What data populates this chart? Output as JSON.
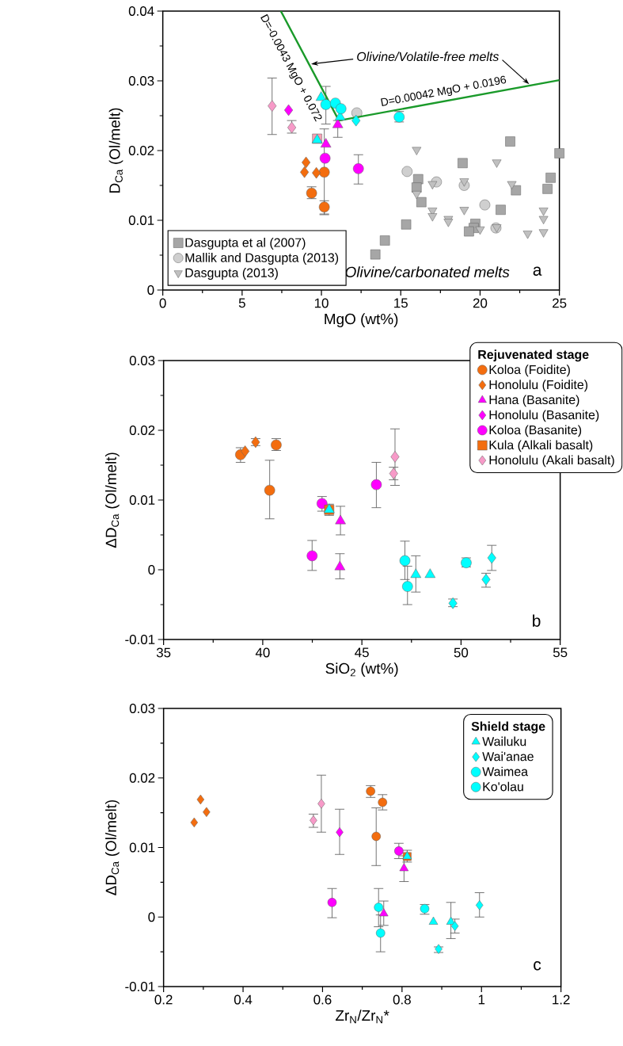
{
  "chart_data": [
    {
      "type": "scatter",
      "xlabel": "MgO (wt%)",
      "ylabel": "D$_{Ca}$ (Ol/melt)",
      "xlim": [
        0,
        25
      ],
      "ylim": [
        0,
        0.04
      ],
      "xticks": [
        0,
        5,
        10,
        15,
        20,
        25
      ],
      "yticks": [
        0,
        0.01,
        0.02,
        0.03,
        0.04
      ],
      "legend": "bottom left",
      "annotations": [
        "D=-0.0043 MgO + 0.072",
        {
          "text": "Olivine/Volatile-free melts",
          "x": 9.35,
          "y": 0.0324
        },
        "D=0.00042 MgO + 0.0196",
        "Olivine/carbonated melts",
        "a"
      ],
      "series": [
        {
          "name": "Dasgupta et al (2007)",
          "marker": "square",
          "color": "#a6a6a6",
          "x": [
            21.9,
            25.0,
            18.9,
            16.1,
            16.0,
            16.3,
            24.45,
            24.25,
            22.26,
            15.34,
            21.3,
            19.7,
            19.6,
            19.3,
            14.0,
            13.4
          ],
          "values": [
            0.0213,
            0.0196,
            0.0182,
            0.0159,
            0.0147,
            0.0126,
            0.0161,
            0.0145,
            0.0143,
            0.0094,
            0.0115,
            0.0095,
            0.0089,
            0.0084,
            0.0071,
            0.0051
          ]
        },
        {
          "name": "Mallik and Dasgupta (2013)",
          "marker": "circle",
          "color": "#cfcfcf",
          "x": [
            12.23,
            15.4,
            17.25,
            19.0,
            20.3,
            21.0
          ],
          "values": [
            0.0254,
            0.017,
            0.0155,
            0.015,
            0.0122,
            0.0089
          ]
        },
        {
          "name": "Dasgupta (2013)",
          "marker": "triangle-down",
          "color": "#c0c0c0",
          "x": [
            16.0,
            21.05,
            17.0,
            19.0,
            22.0,
            16.0,
            17.0,
            17.0,
            18.0,
            18.0,
            19.0,
            20.0,
            21.05,
            23.0,
            24.0,
            24.0,
            24.0
          ],
          "values": [
            0.0201,
            0.0183,
            0.0152,
            0.0156,
            0.0152,
            0.0138,
            0.0114,
            0.0106,
            0.0102,
            0.0098,
            0.0115,
            0.0087,
            0.009,
            0.0081,
            0.0114,
            0.0102,
            0.0083
          ]
        },
        {
          "type": "line",
          "color": "#1a9a2a",
          "x": [
            7.44,
            11.1,
            25
          ],
          "values": [
            0.04,
            0.0243,
            0.0301
          ]
        },
        {
          "marker": "circle",
          "color": "#f36d0f",
          "x": [
            9.38,
            10.18,
            10.18
          ],
          "values": [
            0.0139,
            0.0169,
            0.0119
          ],
          "errors": [
            [
              0.0131,
              0.0148
            ],
            [
              0.0108,
              0.0231
            ],
            [
              0.0109,
              0.0128
            ]
          ]
        },
        {
          "marker": "diamond",
          "color": "#f36d0f",
          "x": [
            9.03,
            8.93,
            9.68
          ],
          "values": [
            0.0183,
            0.0169,
            0.0168
          ]
        },
        {
          "marker": "triangle",
          "color": "#ff00ff",
          "x": [
            10.28,
            11.03
          ],
          "values": [
            0.0209,
            0.0237
          ],
          "errors": [
            null,
            [
              0.0219,
              0.0243
            ]
          ]
        },
        {
          "marker": "diamond",
          "color": "#ff00ff",
          "x": [
            7.93
          ],
          "values": [
            0.0258
          ]
        },
        {
          "marker": "circle",
          "color": "#ff00ff",
          "x": [
            10.23,
            12.33
          ],
          "values": [
            0.0189,
            0.0174
          ],
          "errors": [
            null,
            [
              0.0152,
              0.0194
            ]
          ]
        },
        {
          "marker": "square",
          "color": "#f7a0b4",
          "x": [
            9.73
          ],
          "values": [
            0.0217
          ]
        },
        {
          "marker": "diamond",
          "color": "#f79ac8",
          "x": [
            6.89,
            8.13
          ],
          "values": [
            0.0264,
            0.0233
          ],
          "errors": [
            [
              0.0223,
              0.0304
            ],
            [
              0.0225,
              0.0243
            ]
          ]
        },
        {
          "marker": "triangle",
          "color": "#00ffff",
          "x": [
            9.73,
            9.98,
            11.18
          ],
          "values": [
            0.0215,
            0.0276,
            0.0248
          ]
        },
        {
          "marker": "diamond",
          "color": "#00ffff",
          "x": [
            12.18
          ],
          "values": [
            0.0243
          ]
        },
        {
          "marker": "circle",
          "color": "#00ffff",
          "x": [
            10.28,
            10.88,
            11.23,
            14.9
          ],
          "values": [
            0.0266,
            0.0268,
            0.026,
            0.0248
          ],
          "errors": [
            [
              0.0238,
              0.0292
            ],
            null,
            null,
            [
              0.0241,
              0.0256
            ]
          ]
        }
      ]
    },
    {
      "type": "scatter",
      "xlabel": "SiO$_{2}$ (wt%)",
      "ylabel": "ΔD$_{Ca}$ (Ol/melt)",
      "xlim": [
        35,
        55
      ],
      "ylim": [
        -0.01,
        0.03
      ],
      "xticks": [
        35,
        40,
        45,
        50,
        55
      ],
      "yticks": [
        -0.01,
        0,
        0.01,
        0.02,
        0.03
      ],
      "legend": "top right",
      "legend_title": "Rejuvenated stage",
      "annotations": [
        "b"
      ],
      "series": [
        {
          "name": "Koloa (Foidite)",
          "marker": "circle",
          "color": "#f36d0f",
          "x": [
            38.88,
            40.68,
            40.35
          ],
          "values": [
            0.0165,
            0.0179,
            0.0114
          ],
          "errors": [
            [
              0.0154,
              0.0175
            ],
            [
              0.0171,
              0.0188
            ],
            [
              0.0073,
              0.0157
            ]
          ]
        },
        {
          "name": "Honolulu (Foidite)",
          "marker": "diamond",
          "color": "#f36d0f",
          "x": [
            39.11,
            39.64
          ],
          "values": [
            0.017,
            0.0183
          ],
          "errors": [
            null,
            [
              0.0178,
              0.0188
            ]
          ]
        },
        {
          "name": "Hana (Basanite)",
          "marker": "triangle",
          "color": "#ff00ff",
          "x": [
            43.92,
            43.89
          ],
          "values": [
            0.007,
            0.0004
          ],
          "errors": [
            [
              0.005,
              0.0091
            ],
            [
              -0.0013,
              0.0023
            ]
          ]
        },
        {
          "name": "Honolulu (Basanite)",
          "marker": "diamond",
          "color": "#ff00ff"
        },
        {
          "name": "Koloa (Basanite)",
          "marker": "circle",
          "color": "#ff00ff",
          "x": [
            42.99,
            42.49,
            45.73
          ],
          "values": [
            0.0095,
            0.002,
            0.0122
          ],
          "errors": [
            [
              0.0084,
              0.0105
            ],
            [
              -0.0001,
              0.0042
            ],
            [
              0.0089,
              0.0154
            ]
          ]
        },
        {
          "name": "Kula (Alkali basalt)",
          "marker": "square",
          "color": "#f36d0f",
          "x": [
            43.35
          ],
          "values": [
            0.0086
          ],
          "errors": [
            [
              0.0078,
              0.0094
            ]
          ]
        },
        {
          "name": "Honolulu (Akali basalt)",
          "marker": "diamond",
          "color": "#f79ac8",
          "x": [
            46.67,
            46.6
          ],
          "values": [
            0.0162,
            0.0138
          ],
          "errors": [
            [
              0.0121,
              0.0202
            ],
            [
              0.0129,
              0.0147
            ]
          ]
        },
        {
          "marker": "triangle",
          "color": "#00ffff",
          "x": [
            43.35,
            47.72,
            48.44
          ],
          "values": [
            0.0086,
            -0.0007,
            -0.0007
          ],
          "errors": [
            null,
            [
              -0.0032,
              0.002
            ],
            null
          ]
        },
        {
          "marker": "diamond",
          "color": "#00ffff",
          "x": [
            49.59,
            51.26,
            51.55
          ],
          "values": [
            -0.0048,
            -0.0014,
            0.0017
          ],
          "errors": [
            [
              -0.0053,
              -0.0042
            ],
            [
              -0.0025,
              -0.0005
            ],
            [
              -0.0001,
              0.0035
            ]
          ]
        },
        {
          "marker": "circle",
          "color": "#00ffff",
          "x": [
            47.17,
            47.3
          ],
          "values": [
            0.0013,
            -0.0024
          ],
          "errors": [
            [
              -0.0014,
              0.0041
            ],
            [
              -0.005,
              0.0005
            ]
          ]
        },
        {
          "marker": "circle",
          "color": "#00ffff",
          "x": [
            50.26
          ],
          "values": [
            0.001
          ],
          "errors": [
            [
              0.0004,
              0.0017
            ]
          ]
        }
      ]
    },
    {
      "type": "scatter",
      "xlabel": "Zr$_{N}$/Zr$_{N}$*",
      "ylabel": "ΔD$_{Ca}$ (Ol/melt)",
      "xlim": [
        0.2,
        1.2
      ],
      "ylim": [
        -0.01,
        0.03
      ],
      "xticks": [
        0.2,
        0.4,
        0.6,
        0.8,
        1,
        1.2
      ],
      "yticks": [
        -0.01,
        0,
        0.01,
        0.02,
        0.03
      ],
      "legend": "top right",
      "legend_title": "Shield stage",
      "annotations": [
        "c"
      ],
      "series": [
        {
          "marker": "circle",
          "color": "#f36d0f",
          "x": [
            0.721,
            0.751,
            0.735
          ],
          "values": [
            0.0181,
            0.0165,
            0.0116
          ],
          "errors": [
            [
              0.0172,
              0.0189
            ],
            [
              0.0154,
              0.0176
            ],
            [
              0.0074,
              0.0157
            ]
          ]
        },
        {
          "marker": "diamond",
          "color": "#f36d0f",
          "x": [
            0.277,
            0.293,
            0.308
          ],
          "values": [
            0.0136,
            0.0169,
            0.0151
          ]
        },
        {
          "marker": "triangle",
          "color": "#ff00ff",
          "x": [
            0.805,
            0.754
          ],
          "values": [
            0.007,
            0.0005
          ],
          "errors": [
            [
              0.0051,
              0.0088
            ],
            [
              -0.0012,
              0.0023
            ]
          ]
        },
        {
          "marker": "diamond",
          "color": "#ff00ff",
          "x": [
            0.643
          ],
          "values": [
            0.0122
          ],
          "errors": [
            [
              0.009,
              0.0155
            ]
          ]
        },
        {
          "marker": "circle",
          "color": "#ff00ff",
          "x": [
            0.792,
            0.624
          ],
          "values": [
            0.0095,
            0.0021
          ],
          "errors": [
            [
              0.0084,
              0.0106
            ],
            [
              -0.0001,
              0.0041
            ]
          ]
        },
        {
          "marker": "square",
          "color": "#f36d0f",
          "x": [
            0.813
          ],
          "values": [
            0.0087
          ],
          "errors": [
            [
              0.0079,
              0.0096
            ]
          ]
        },
        {
          "marker": "diamond",
          "color": "#f79ac8",
          "x": [
            0.597,
            0.577
          ],
          "values": [
            0.0163,
            0.0139
          ],
          "errors": [
            [
              0.0122,
              0.0204
            ],
            [
              0.0129,
              0.0148
            ]
          ]
        },
        {
          "name": "Wailuku",
          "marker": "triangle",
          "color": "#00ffff",
          "x": [
            0.813,
            0.879,
            0.923
          ],
          "values": [
            0.0087,
            -0.0007,
            -0.0007
          ],
          "errors": [
            null,
            null,
            [
              -0.0031,
              0.0021
            ]
          ]
        },
        {
          "name": "Wai'anae",
          "marker": "diamond",
          "color": "#00ffff",
          "x": [
            0.892,
            0.933,
            0.995
          ],
          "values": [
            -0.0046,
            -0.0013,
            0.0017
          ],
          "errors": [
            [
              -0.0051,
              -0.0043
            ],
            [
              -0.0023,
              -0.0003
            ],
            [
              0.0,
              0.0035
            ]
          ]
        },
        {
          "name": "Waimea",
          "marker": "circle",
          "color": "#00ffff",
          "x": [
            0.741,
            0.746
          ],
          "values": [
            0.0014,
            -0.0023
          ],
          "errors": [
            [
              -0.0014,
              0.0041
            ],
            [
              -0.005,
              0.0003
            ]
          ]
        },
        {
          "name": "Ko'olau",
          "marker": "circle",
          "color": "#00ffff",
          "x": [
            0.857
          ],
          "values": [
            0.0012
          ],
          "errors": [
            [
              0.0004,
              0.0018
            ]
          ]
        }
      ]
    }
  ]
}
